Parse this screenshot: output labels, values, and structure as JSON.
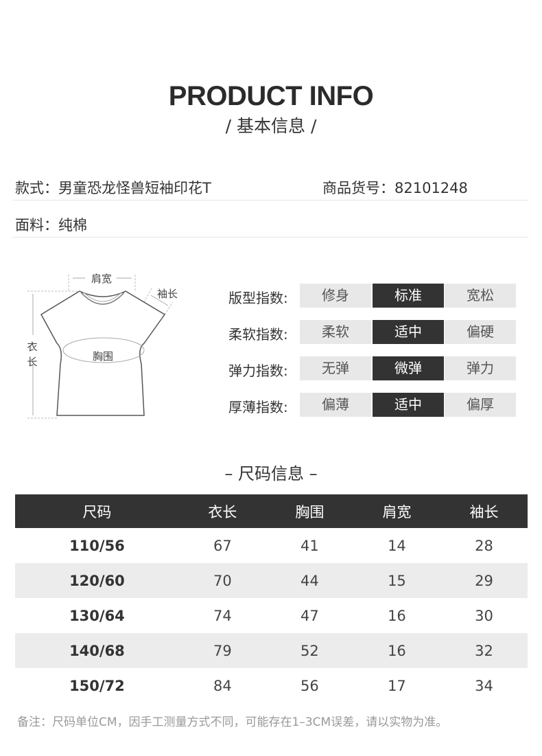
{
  "header": {
    "title": "PRODUCT INFO",
    "subtitle": "/ 基本信息 /"
  },
  "info": {
    "style_label": "款式：",
    "style_value": "男童恐龙怪兽短袖印花T",
    "sku_label": "商品货号：",
    "sku_value": "82101248",
    "fabric_label": "面料：",
    "fabric_value": "纯棉"
  },
  "diagram": {
    "shoulder": "肩宽",
    "sleeve": "袖长",
    "length_1": "衣",
    "length_2": "长",
    "chest": "胸围"
  },
  "indices": [
    {
      "label": "版型指数:",
      "options": [
        "修身",
        "标准",
        "宽松"
      ],
      "selected": 1
    },
    {
      "label": "柔软指数:",
      "options": [
        "柔软",
        "适中",
        "偏硬"
      ],
      "selected": 1
    },
    {
      "label": "弹力指数:",
      "options": [
        "无弹",
        "微弹",
        "弹力"
      ],
      "selected": 1
    },
    {
      "label": "厚薄指数:",
      "options": [
        "偏薄",
        "适中",
        "偏厚"
      ],
      "selected": 1
    }
  ],
  "size_table": {
    "title": "– 尺码信息 –",
    "headers": [
      "尺码",
      "衣长",
      "胸围",
      "肩宽",
      "袖长"
    ],
    "rows": [
      [
        "110/56",
        "67",
        "41",
        "14",
        "28"
      ],
      [
        "120/60",
        "70",
        "44",
        "15",
        "29"
      ],
      [
        "130/64",
        "74",
        "47",
        "16",
        "30"
      ],
      [
        "140/68",
        "79",
        "52",
        "16",
        "32"
      ],
      [
        "150/72",
        "84",
        "56",
        "17",
        "34"
      ]
    ]
  },
  "note": "备注：尺码单位CM，因手工测量方式不同，可能存在1–3CM误差，请以实物为准。",
  "colors": {
    "dark": "#333333",
    "light_cell": "#e8e8e8"
  }
}
